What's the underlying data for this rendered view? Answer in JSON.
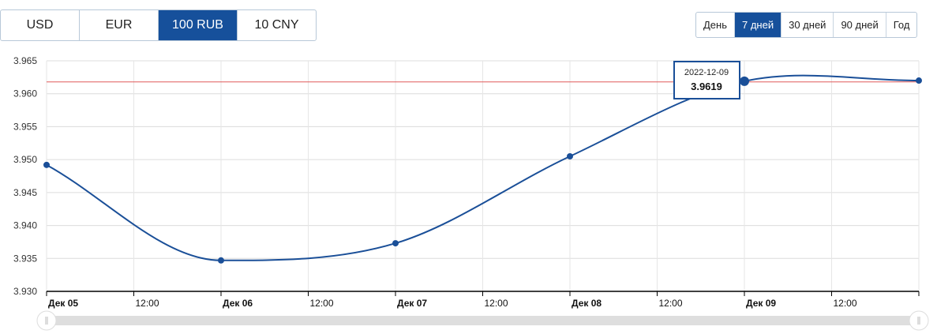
{
  "currency_tabs": [
    {
      "label": "USD",
      "active": false
    },
    {
      "label": "EUR",
      "active": false
    },
    {
      "label": "100 RUB",
      "active": true
    },
    {
      "label": "10 CNY",
      "active": false
    }
  ],
  "period_tabs": [
    {
      "label": "День",
      "active": false
    },
    {
      "label": "7 дней",
      "active": true
    },
    {
      "label": "30 дней",
      "active": false
    },
    {
      "label": "90 дней",
      "active": false
    },
    {
      "label": "Год",
      "active": false
    }
  ],
  "tooltip": {
    "date": "2022-12-09",
    "value": "3.9619"
  },
  "colors": {
    "accent": "#16509b",
    "line": "#1a4f98",
    "reference": "#e05a5a"
  },
  "chart_data": {
    "type": "line",
    "x": [
      "2022-12-05",
      "2022-12-06",
      "2022-12-07",
      "2022-12-08",
      "2022-12-09",
      "2022-12-10"
    ],
    "values": [
      3.9492,
      3.9347,
      3.9373,
      3.9505,
      3.9619,
      3.962
    ],
    "reference_line": 3.9618,
    "ylim": [
      3.93,
      3.965
    ],
    "yticks": [
      "3.930",
      "3.935",
      "3.940",
      "3.945",
      "3.950",
      "3.955",
      "3.960",
      "3.965"
    ],
    "xticks": [
      "Дек 05",
      "12:00",
      "Дек 06",
      "12:00",
      "Дек 07",
      "12:00",
      "Дек 08",
      "12:00",
      "Дек 09",
      "12:00"
    ],
    "grid": true
  }
}
